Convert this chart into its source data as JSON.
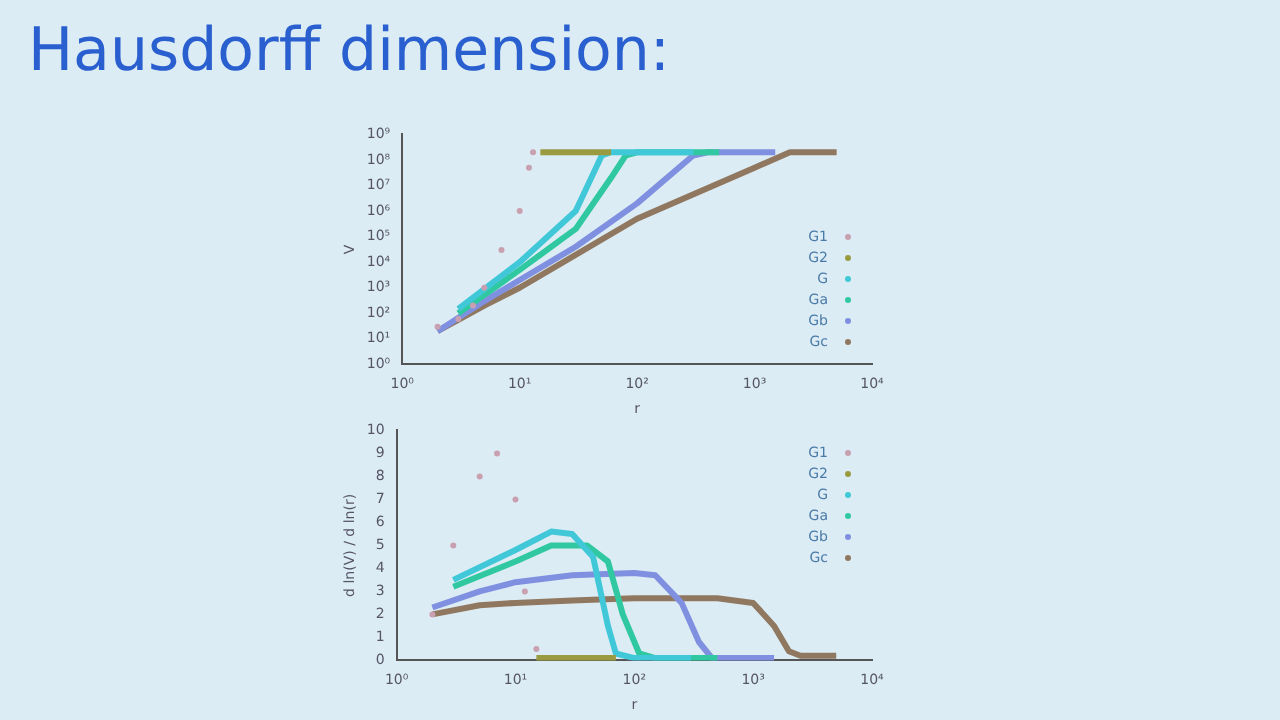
{
  "chart_data": [
    {
      "type": "line",
      "title": "Hausdorff dimension:",
      "xlabel": "r",
      "ylabel": "V",
      "log": "xy",
      "legend": "bottom right",
      "grid": false,
      "xlim": [
        1,
        10000
      ],
      "xticks": [
        {
          "value": 1,
          "label": "10⁰"
        },
        {
          "value": 10,
          "label": "10¹"
        },
        {
          "value": 100,
          "label": "10²"
        },
        {
          "value": 1000,
          "label": "10³"
        },
        {
          "value": 10000,
          "label": "10⁴"
        }
      ],
      "ylim": [
        1,
        1000000000
      ],
      "yticks": [
        {
          "value": 1,
          "label": "10⁰"
        },
        {
          "value": 10,
          "label": "10¹"
        },
        {
          "value": 100,
          "label": "10²"
        },
        {
          "value": 1000,
          "label": "10³"
        },
        {
          "value": 10000,
          "label": "10⁴"
        },
        {
          "value": 100000,
          "label": "10⁵"
        },
        {
          "value": 1000000,
          "label": "10⁶"
        },
        {
          "value": 10000000,
          "label": "10⁷"
        },
        {
          "value": 100000000,
          "label": "10⁸"
        },
        {
          "value": 1000000000,
          "label": "10⁹"
        }
      ],
      "series": [
        {
          "name": "G1",
          "type": "scatter",
          "marker": "circle",
          "color": "#c8a0b0",
          "x": [
            2,
            3,
            4,
            5,
            7,
            10,
            12,
            13
          ],
          "values": [
            30,
            60,
            200,
            1000,
            30000,
            1000000,
            50000000,
            200000000
          ]
        },
        {
          "name": "G2",
          "color": "#9a9a40",
          "x": [
            15,
            20,
            30,
            50,
            60
          ],
          "values": [
            200000000,
            200000000,
            200000000,
            200000000,
            200000000
          ]
        },
        {
          "name": "G",
          "color": "#40c8d8",
          "x": [
            3,
            10,
            30,
            50,
            60,
            300
          ],
          "values": [
            150,
            10000,
            1000000,
            150000000,
            200000000,
            200000000
          ]
        },
        {
          "name": "Ga",
          "color": "#30c8a0",
          "x": [
            3,
            10,
            30,
            60,
            80,
            100,
            500
          ],
          "values": [
            100,
            5000,
            200000,
            20000000,
            150000000,
            200000000,
            200000000
          ]
        },
        {
          "name": "Gb",
          "color": "#8090e0",
          "x": [
            2,
            5,
            10,
            30,
            100,
            300,
            400,
            1500
          ],
          "values": [
            20,
            300,
            2000,
            40000,
            2000000,
            150000000,
            200000000,
            200000000
          ]
        },
        {
          "name": "Gc",
          "color": "#907860",
          "x": [
            2,
            5,
            10,
            100,
            1000,
            2000,
            5000
          ],
          "values": [
            20,
            200,
            1000,
            500000,
            50000000,
            200000000,
            200000000
          ]
        }
      ]
    },
    {
      "type": "line",
      "xlabel": "r",
      "ylabel": "d ln(V) / d ln(r)",
      "log": "x",
      "legend": "top right",
      "grid": false,
      "xlim": [
        1,
        10000
      ],
      "xticks": [
        {
          "value": 1,
          "label": "10⁰"
        },
        {
          "value": 10,
          "label": "10¹"
        },
        {
          "value": 100,
          "label": "10²"
        },
        {
          "value": 1000,
          "label": "10³"
        },
        {
          "value": 10000,
          "label": "10⁴"
        }
      ],
      "ylim": [
        0,
        10
      ],
      "yticks": [
        0,
        1,
        2,
        3,
        4,
        5,
        6,
        7,
        8,
        9,
        10
      ],
      "series": [
        {
          "name": "G1",
          "type": "scatter",
          "marker": "circle",
          "color": "#c8a0b0",
          "x": [
            2,
            3,
            5,
            7,
            10,
            12,
            15
          ],
          "values": [
            2,
            5,
            8,
            9,
            7,
            3,
            0.5
          ]
        },
        {
          "name": "G2",
          "color": "#9a9a40",
          "x": [
            15,
            30,
            70
          ],
          "values": [
            0.1,
            0.1,
            0.1
          ]
        },
        {
          "name": "G",
          "color": "#40c8d8",
          "x": [
            3,
            10,
            20,
            30,
            45,
            60,
            70,
            100,
            300
          ],
          "values": [
            3.5,
            4.8,
            5.6,
            5.5,
            4.5,
            1.5,
            0.3,
            0.1,
            0.1
          ]
        },
        {
          "name": "Ga",
          "color": "#30c8a0",
          "x": [
            3,
            10,
            20,
            40,
            60,
            80,
            110,
            150,
            500
          ],
          "values": [
            3.2,
            4.3,
            5,
            5,
            4.3,
            2,
            0.3,
            0.1,
            0.1
          ]
        },
        {
          "name": "Gb",
          "color": "#8090e0",
          "x": [
            2,
            5,
            10,
            30,
            100,
            150,
            250,
            350,
            450,
            1500
          ],
          "values": [
            2.3,
            3,
            3.4,
            3.7,
            3.8,
            3.7,
            2.5,
            0.8,
            0.1,
            0.1
          ]
        },
        {
          "name": "Gc",
          "color": "#907860",
          "x": [
            2,
            5,
            10,
            30,
            100,
            500,
            1000,
            1500,
            2000,
            2500,
            5000
          ],
          "values": [
            2,
            2.4,
            2.5,
            2.6,
            2.7,
            2.7,
            2.5,
            1.5,
            0.4,
            0.2,
            0.2
          ]
        }
      ]
    }
  ]
}
